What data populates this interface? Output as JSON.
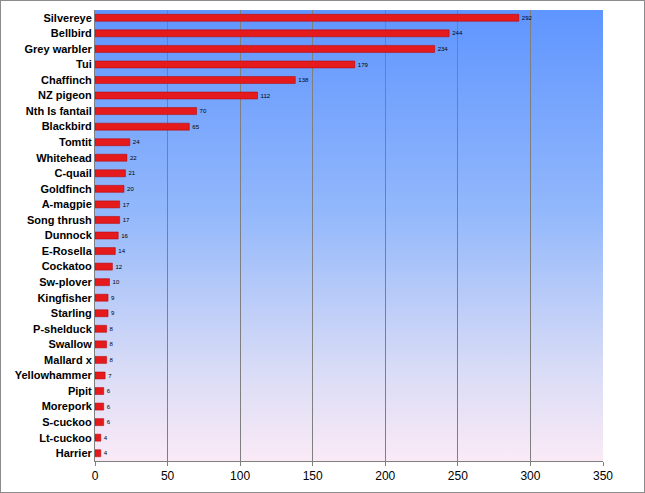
{
  "chart_data": {
    "type": "bar",
    "orientation": "horizontal",
    "categories": [
      "Silvereye",
      "Bellbird",
      "Grey warbler",
      "Tui",
      "Chaffinch",
      "NZ pigeon",
      "Nth Is fantail",
      "Blackbird",
      "Tomtit",
      "Whitehead",
      "C-quail",
      "Goldfinch",
      "A-magpie",
      "Song thrush",
      "Dunnock",
      "E-Rosella",
      "Cockatoo",
      "Sw-plover",
      "Kingfisher",
      "Starling",
      "P-shelduck",
      "Swallow",
      "Mallard x",
      "Yellowhammer",
      "Pipit",
      "Morepork",
      "S-cuckoo",
      "Lt-cuckoo",
      "Harrier"
    ],
    "values": [
      292,
      244,
      234,
      179,
      138,
      112,
      70,
      65,
      24,
      22,
      21,
      20,
      17,
      17,
      16,
      14,
      12,
      10,
      9,
      9,
      8,
      8,
      8,
      7,
      6,
      6,
      6,
      4,
      4
    ],
    "color": "#e41a1c",
    "xlim": [
      0,
      350
    ],
    "xticks": [
      0,
      50,
      100,
      150,
      200,
      250,
      300,
      350
    ],
    "grid": true,
    "data_labels": true
  }
}
